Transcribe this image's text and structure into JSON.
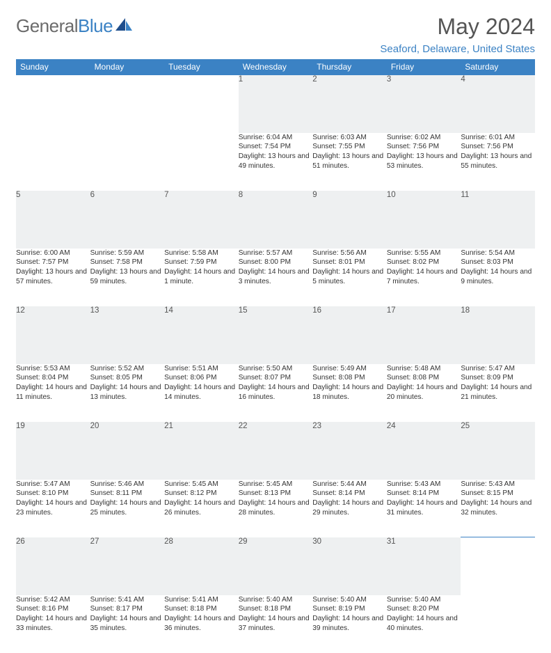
{
  "logo": {
    "general": "General",
    "blue": "Blue"
  },
  "title": "May 2024",
  "location": "Seaford, Delaware, United States",
  "colors": {
    "brand": "#3b82c4",
    "header_bg": "#3b82c4",
    "header_text": "#ffffff",
    "daynum_bg": "#eef0f1",
    "body_text": "#333333",
    "title_text": "#555555"
  },
  "weekdays": [
    "Sunday",
    "Monday",
    "Tuesday",
    "Wednesday",
    "Thursday",
    "Friday",
    "Saturday"
  ],
  "weeks": [
    [
      null,
      null,
      null,
      {
        "n": "1",
        "sr": "6:04 AM",
        "ss": "7:54 PM",
        "dl": "13 hours and 49 minutes."
      },
      {
        "n": "2",
        "sr": "6:03 AM",
        "ss": "7:55 PM",
        "dl": "13 hours and 51 minutes."
      },
      {
        "n": "3",
        "sr": "6:02 AM",
        "ss": "7:56 PM",
        "dl": "13 hours and 53 minutes."
      },
      {
        "n": "4",
        "sr": "6:01 AM",
        "ss": "7:56 PM",
        "dl": "13 hours and 55 minutes."
      }
    ],
    [
      {
        "n": "5",
        "sr": "6:00 AM",
        "ss": "7:57 PM",
        "dl": "13 hours and 57 minutes."
      },
      {
        "n": "6",
        "sr": "5:59 AM",
        "ss": "7:58 PM",
        "dl": "13 hours and 59 minutes."
      },
      {
        "n": "7",
        "sr": "5:58 AM",
        "ss": "7:59 PM",
        "dl": "14 hours and 1 minute."
      },
      {
        "n": "8",
        "sr": "5:57 AM",
        "ss": "8:00 PM",
        "dl": "14 hours and 3 minutes."
      },
      {
        "n": "9",
        "sr": "5:56 AM",
        "ss": "8:01 PM",
        "dl": "14 hours and 5 minutes."
      },
      {
        "n": "10",
        "sr": "5:55 AM",
        "ss": "8:02 PM",
        "dl": "14 hours and 7 minutes."
      },
      {
        "n": "11",
        "sr": "5:54 AM",
        "ss": "8:03 PM",
        "dl": "14 hours and 9 minutes."
      }
    ],
    [
      {
        "n": "12",
        "sr": "5:53 AM",
        "ss": "8:04 PM",
        "dl": "14 hours and 11 minutes."
      },
      {
        "n": "13",
        "sr": "5:52 AM",
        "ss": "8:05 PM",
        "dl": "14 hours and 13 minutes."
      },
      {
        "n": "14",
        "sr": "5:51 AM",
        "ss": "8:06 PM",
        "dl": "14 hours and 14 minutes."
      },
      {
        "n": "15",
        "sr": "5:50 AM",
        "ss": "8:07 PM",
        "dl": "14 hours and 16 minutes."
      },
      {
        "n": "16",
        "sr": "5:49 AM",
        "ss": "8:08 PM",
        "dl": "14 hours and 18 minutes."
      },
      {
        "n": "17",
        "sr": "5:48 AM",
        "ss": "8:08 PM",
        "dl": "14 hours and 20 minutes."
      },
      {
        "n": "18",
        "sr": "5:47 AM",
        "ss": "8:09 PM",
        "dl": "14 hours and 21 minutes."
      }
    ],
    [
      {
        "n": "19",
        "sr": "5:47 AM",
        "ss": "8:10 PM",
        "dl": "14 hours and 23 minutes."
      },
      {
        "n": "20",
        "sr": "5:46 AM",
        "ss": "8:11 PM",
        "dl": "14 hours and 25 minutes."
      },
      {
        "n": "21",
        "sr": "5:45 AM",
        "ss": "8:12 PM",
        "dl": "14 hours and 26 minutes."
      },
      {
        "n": "22",
        "sr": "5:45 AM",
        "ss": "8:13 PM",
        "dl": "14 hours and 28 minutes."
      },
      {
        "n": "23",
        "sr": "5:44 AM",
        "ss": "8:14 PM",
        "dl": "14 hours and 29 minutes."
      },
      {
        "n": "24",
        "sr": "5:43 AM",
        "ss": "8:14 PM",
        "dl": "14 hours and 31 minutes."
      },
      {
        "n": "25",
        "sr": "5:43 AM",
        "ss": "8:15 PM",
        "dl": "14 hours and 32 minutes."
      }
    ],
    [
      {
        "n": "26",
        "sr": "5:42 AM",
        "ss": "8:16 PM",
        "dl": "14 hours and 33 minutes."
      },
      {
        "n": "27",
        "sr": "5:41 AM",
        "ss": "8:17 PM",
        "dl": "14 hours and 35 minutes."
      },
      {
        "n": "28",
        "sr": "5:41 AM",
        "ss": "8:18 PM",
        "dl": "14 hours and 36 minutes."
      },
      {
        "n": "29",
        "sr": "5:40 AM",
        "ss": "8:18 PM",
        "dl": "14 hours and 37 minutes."
      },
      {
        "n": "30",
        "sr": "5:40 AM",
        "ss": "8:19 PM",
        "dl": "14 hours and 39 minutes."
      },
      {
        "n": "31",
        "sr": "5:40 AM",
        "ss": "8:20 PM",
        "dl": "14 hours and 40 minutes."
      },
      null
    ]
  ],
  "labels": {
    "sunrise": "Sunrise:",
    "sunset": "Sunset:",
    "daylight": "Daylight:"
  }
}
